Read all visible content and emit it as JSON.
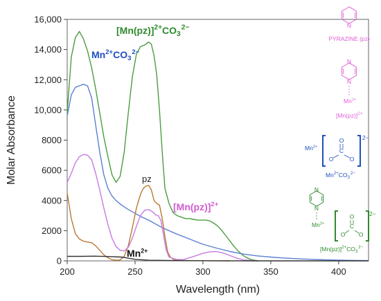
{
  "chart_data": {
    "type": "line",
    "xlabel": "Wavelength (nm)",
    "ylabel": "Molar Absorbance",
    "xlim": [
      200,
      422
    ],
    "ylim": [
      0,
      16000
    ],
    "x_ticks": [
      200,
      250,
      300,
      350,
      400
    ],
    "x_tick_labels": [
      "200",
      "250",
      "300",
      "350",
      "400"
    ],
    "y_ticks": [
      0,
      2000,
      4000,
      6000,
      8000,
      10000,
      12000,
      14000,
      16000
    ],
    "y_tick_labels": [
      "0",
      "2000",
      "4000",
      "6000",
      "8000",
      "10,000",
      "12,000",
      "14,000",
      "16,000"
    ],
    "grid": false,
    "series": [
      {
        "key": "mnpzco3",
        "color": "#4a9c3f",
        "x": [
          200,
          203,
          206,
          209,
          212,
          215,
          218,
          221,
          224,
          227,
          230,
          233,
          236,
          239,
          242,
          245,
          248,
          251,
          254,
          257,
          260,
          262,
          264,
          266,
          268,
          270,
          272,
          275,
          278,
          281,
          284,
          287,
          290,
          293,
          296,
          299,
          302,
          305,
          308,
          311,
          314,
          317,
          320,
          323,
          326,
          329,
          332,
          335,
          338,
          341
        ],
        "y": [
          9800,
          13500,
          14800,
          15200,
          14700,
          13900,
          12800,
          11400,
          9800,
          8200,
          6900,
          5700,
          5200,
          5600,
          7200,
          9800,
          12200,
          13700,
          14200,
          14300,
          14500,
          14350,
          13600,
          12300,
          10000,
          7200,
          4800,
          3800,
          3200,
          3000,
          2900,
          2800,
          2800,
          2750,
          2700,
          2700,
          2700,
          2650,
          2500,
          2300,
          2000,
          1650,
          1300,
          950,
          650,
          400,
          220,
          100,
          40,
          0
        ]
      },
      {
        "key": "mnco3",
        "color": "#5a7fd0",
        "x": [
          200,
          203,
          206,
          209,
          212,
          215,
          218,
          221,
          224,
          227,
          230,
          233,
          236,
          240,
          245,
          250,
          255,
          260,
          265,
          270,
          280,
          290,
          300,
          310,
          320,
          330,
          340,
          350,
          360,
          370,
          380,
          390,
          400,
          410,
          422
        ],
        "y": [
          9600,
          11000,
          11500,
          11600,
          11700,
          11600,
          10800,
          9000,
          7200,
          5700,
          4800,
          4300,
          4000,
          3700,
          3400,
          3150,
          2900,
          2700,
          2450,
          2200,
          1800,
          1450,
          1100,
          850,
          620,
          450,
          330,
          250,
          190,
          140,
          100,
          70,
          50,
          30,
          20
        ]
      },
      {
        "key": "pz",
        "color": "#b87a32",
        "x": [
          200,
          203,
          206,
          209,
          212,
          215,
          218,
          221,
          224,
          227,
          230,
          233,
          236,
          239,
          242,
          245,
          248,
          251,
          254,
          256,
          258,
          260,
          262,
          264,
          266,
          268,
          270,
          272,
          274,
          276,
          278,
          280,
          285,
          290,
          300,
          310,
          320
        ],
        "y": [
          4500,
          2800,
          1800,
          1450,
          1300,
          1250,
          1200,
          1000,
          700,
          400,
          200,
          80,
          40,
          60,
          300,
          1000,
          2200,
          3500,
          4400,
          4800,
          4950,
          5000,
          4700,
          4000,
          3800,
          3700,
          2800,
          1600,
          600,
          250,
          120,
          60,
          30,
          20,
          10,
          5,
          0
        ]
      },
      {
        "key": "mnpz",
        "color": "#c77ae0",
        "x": [
          200,
          203,
          206,
          209,
          212,
          215,
          218,
          221,
          224,
          227,
          230,
          233,
          236,
          239,
          242,
          245,
          248,
          251,
          254,
          257,
          260,
          263,
          265,
          267,
          269,
          271,
          273,
          275,
          280,
          285,
          290,
          295,
          300,
          305,
          310,
          315,
          320,
          325,
          330,
          340
        ],
        "y": [
          5200,
          5800,
          6500,
          6900,
          7050,
          7000,
          6700,
          5800,
          4700,
          3500,
          2400,
          1500,
          950,
          700,
          650,
          900,
          1500,
          2300,
          3000,
          3350,
          3400,
          3250,
          3050,
          3000,
          2700,
          1700,
          700,
          250,
          100,
          80,
          200,
          350,
          500,
          600,
          620,
          520,
          350,
          180,
          60,
          0
        ]
      },
      {
        "key": "mn",
        "color": "#333333",
        "x": [
          200,
          210,
          220,
          230,
          240,
          245,
          250,
          260,
          280,
          300,
          320,
          340,
          360,
          380,
          400,
          422
        ],
        "y": [
          300,
          300,
          310,
          290,
          250,
          180,
          100,
          40,
          20,
          10,
          5,
          0,
          0,
          0,
          0,
          0
        ]
      }
    ],
    "annotations": {
      "mnpzco3": {
        "main": "[Mn(pz)]",
        "sup": "2+",
        "tail": "CO",
        "sub": "3",
        "sup2": "2−"
      },
      "mnco3": {
        "main": "Mn",
        "sup": "2+",
        "tail": "CO",
        "sub": "3",
        "sup2": "2−"
      },
      "pz": {
        "main": "pz"
      },
      "mnpz": {
        "main": "[Mn(pz)]",
        "sup": "2+"
      },
      "mn": {
        "main": "Mn",
        "sup": "2+"
      }
    },
    "structures": {
      "pyrazine_name": "PYRAZINE (pz)",
      "atom_N": "N",
      "atom_O": "O",
      "atom_C": "C",
      "mn_ion": "Mn",
      "ion_charge": "2+",
      "o_minus": "−",
      "mnpz_label": {
        "main": "[Mn(pz)]",
        "sup": "2+"
      },
      "mnco3_label": {
        "main": "Mn",
        "sup": "2+",
        "tail": "CO",
        "sub": "3",
        "sup2": "2−"
      },
      "mnpzco3_label": {
        "main": "[Mn(pz)]",
        "sup": "2+",
        "tail": "CO",
        "sub": "3",
        "sup2": "2−"
      },
      "bracket_charge": "2−"
    }
  }
}
